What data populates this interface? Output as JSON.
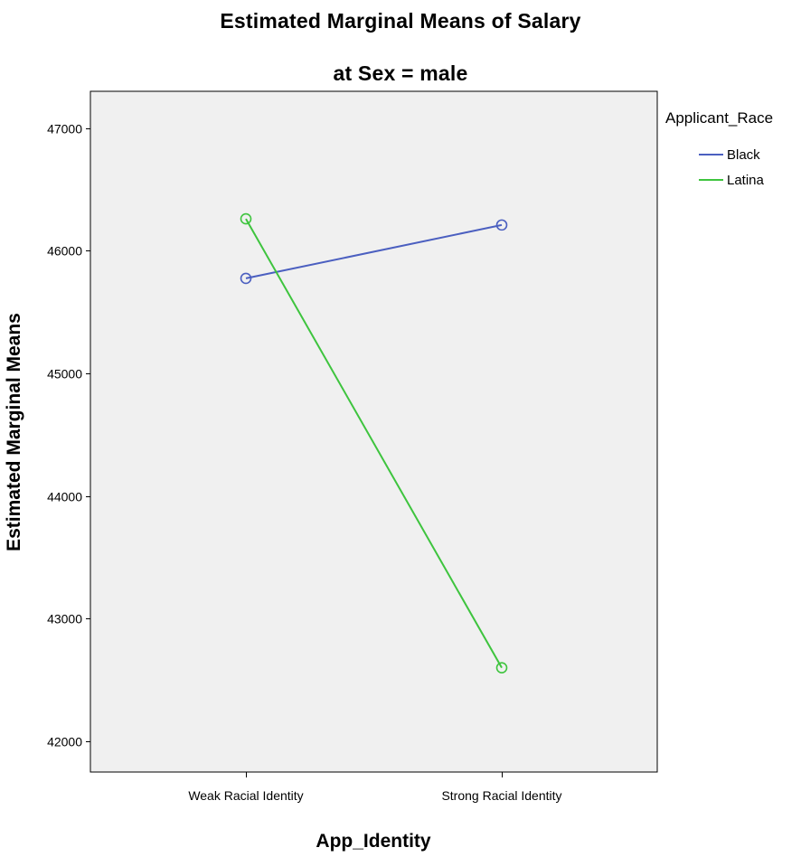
{
  "chart_data": {
    "type": "line",
    "title": "Estimated Marginal Means of Salary",
    "subtitle": "at Sex = male",
    "xlabel": "App_Identity",
    "ylabel": "Estimated Marginal Means",
    "categories": [
      "Weak Racial Identity",
      "Strong Racial Identity"
    ],
    "ylim": [
      41750,
      47300
    ],
    "yticks": [
      42000,
      43000,
      44000,
      45000,
      46000,
      47000
    ],
    "grid": false,
    "legend": {
      "title": "Applicant_Race",
      "placement": "right"
    },
    "series": [
      {
        "name": "Black",
        "color": "#4b5fc0",
        "values": [
          45775,
          46210
        ]
      },
      {
        "name": "Latina",
        "color": "#3ec43e",
        "values": [
          46260,
          42600
        ]
      }
    ],
    "plot_background": "#f0f0f0"
  }
}
